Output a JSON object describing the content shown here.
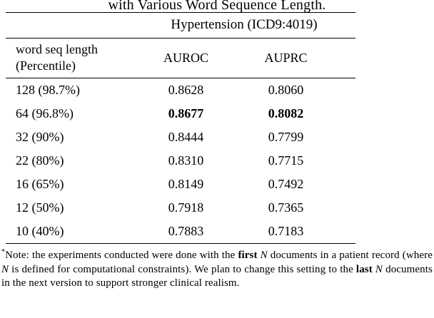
{
  "caption": {
    "text": "with Various Word Sequence Length."
  },
  "table": {
    "group_header": "Hypertension (ICD9:4019)",
    "row_header": {
      "line1": "word seq length",
      "line2": "(Percentile)"
    },
    "col_headers": [
      "AUROC",
      "AUPRC"
    ],
    "rows": [
      {
        "label": "128 (98.7%)",
        "auroc": "0.8628",
        "auprc": "0.8060"
      },
      {
        "label": "64 (96.8%)",
        "auroc": "0.8677",
        "auprc": "0.8082"
      },
      {
        "label": "32 (90%)",
        "auroc": "0.8444",
        "auprc": "0.7799"
      },
      {
        "label": "22 (80%)",
        "auroc": "0.8310",
        "auprc": "0.7715"
      },
      {
        "label": "16 (65%)",
        "auroc": "0.8149",
        "auprc": "0.7492"
      },
      {
        "label": "12 (50%)",
        "auroc": "0.7918",
        "auprc": "0.7365"
      },
      {
        "label": "10 (40%)",
        "auroc": "0.7883",
        "auprc": "0.7183"
      }
    ]
  },
  "footnote": {
    "marker": "*",
    "p1": "Note: the experiments conducted were done with the ",
    "b1": "first",
    "s1": " ",
    "n1": "N",
    "p2": " documents in a patient record (where ",
    "n2": "N",
    "p3": " is defined for computational constraints). We plan to change this setting to the ",
    "b2": "last",
    "s2": " ",
    "n3": "N",
    "p4": " documents in the next version to support stronger clinical realism."
  }
}
